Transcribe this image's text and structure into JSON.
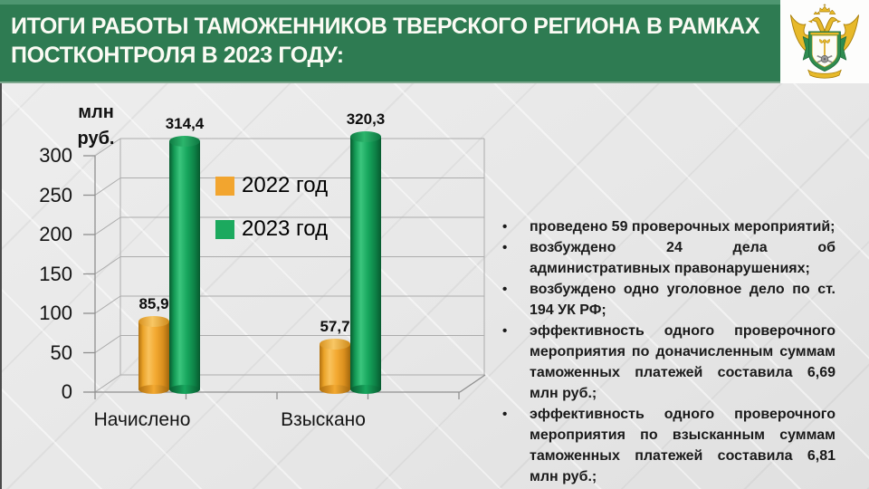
{
  "header": {
    "title_line1": "ИТОГИ РАБОТЫ ТАМОЖЕННИКОВ ТВЕРСКОГО РЕГИОНА В РАМКАХ",
    "title_line2": "ПОСТКОНТРОЛЯ В 2023 ГОДУ:",
    "bg_color": "#2E7B52",
    "logo_icon": "russian-customs-service-emblem"
  },
  "chart_data": {
    "type": "bar",
    "style": "3d-cylinder",
    "title": "",
    "axis_unit_label_line1": "млн",
    "axis_unit_label_line2": "руб.",
    "categories": [
      "Начислено",
      "Взыскано"
    ],
    "series": [
      {
        "name": "2022 год",
        "color": "#F2A52F",
        "values": [
          85.9,
          57.7
        ],
        "labels": [
          "85,9",
          "57,7"
        ]
      },
      {
        "name": "2023 год",
        "color": "#1CA95E",
        "values": [
          314.4,
          320.3
        ],
        "labels": [
          "314,4",
          "320,3"
        ]
      }
    ],
    "y_ticks": [
      "0",
      "50",
      "100",
      "150",
      "200",
      "250",
      "300"
    ],
    "ylim": [
      0,
      335
    ],
    "grid": true,
    "legend_position": "center-overlay"
  },
  "details": {
    "bullets": [
      "проведено 59 проверочных мероприятий;",
      "возбуждено 24 дела об административных правонарушениях;",
      "возбуждено одно уголовное дело по ст. 194 УК РФ;",
      "эффективность одного проверочного мероприятия по доначисленным суммам таможенных платежей составила 6,69 млн руб.;",
      "эффективность одного проверочного мероприятия по взысканным суммам таможенных платежей составила 6,81 млн руб.;"
    ]
  }
}
